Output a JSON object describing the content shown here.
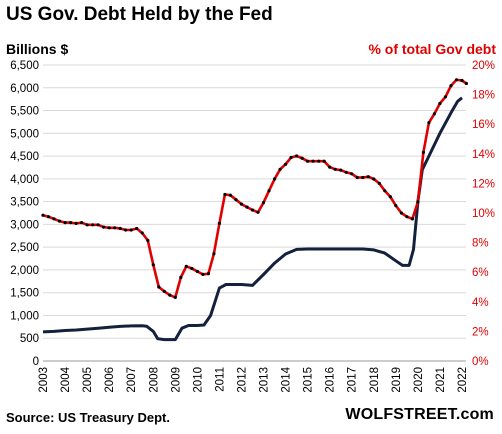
{
  "title": "US Gov. Debt Held by the Fed",
  "source": "Source: US Treasury Dept.",
  "brand": "WOLFSTREET.com",
  "colors": {
    "debt": "#14213d",
    "pct": "#e00000",
    "marker": "#000000",
    "grid": "#d9d9d9"
  },
  "chart_data": {
    "type": "line",
    "title": "US Gov. Debt Held by the Fed",
    "xlabel": "",
    "y1label": "Billions  $",
    "y2label": "% of total Gov debt",
    "xlim": [
      2003,
      2022
    ],
    "ylim": [
      0,
      6500
    ],
    "y2lim": [
      0,
      20
    ],
    "grid": "horizontal",
    "x_ticks": [
      "2003",
      "2004",
      "2005",
      "2006",
      "2007",
      "2008",
      "2009",
      "2010",
      "2011",
      "2012",
      "2013",
      "2014",
      "2015",
      "2016",
      "2017",
      "2018",
      "2019",
      "2020",
      "2021",
      "2022"
    ],
    "y1_ticks": [
      "0",
      "500",
      "1,000",
      "1,500",
      "2,000",
      "2,500",
      "3,000",
      "3,500",
      "4,000",
      "4,500",
      "5,000",
      "5,500",
      "6,000",
      "6,500"
    ],
    "y2_ticks": [
      "0%",
      "2%",
      "4%",
      "6%",
      "8%",
      "10%",
      "12%",
      "14%",
      "16%",
      "18%",
      "20%"
    ],
    "series": [
      {
        "name": "Billions $",
        "axis": "left",
        "points": [
          [
            2003.0,
            640
          ],
          [
            2003.5,
            650
          ],
          [
            2004.0,
            670
          ],
          [
            2004.5,
            680
          ],
          [
            2005.0,
            700
          ],
          [
            2005.5,
            720
          ],
          [
            2006.0,
            740
          ],
          [
            2006.5,
            760
          ],
          [
            2007.0,
            770
          ],
          [
            2007.5,
            775
          ],
          [
            2007.7,
            765
          ],
          [
            2008.0,
            650
          ],
          [
            2008.2,
            490
          ],
          [
            2008.5,
            470
          ],
          [
            2009.0,
            470
          ],
          [
            2009.3,
            720
          ],
          [
            2009.6,
            780
          ],
          [
            2010.0,
            780
          ],
          [
            2010.3,
            790
          ],
          [
            2010.6,
            1000
          ],
          [
            2010.8,
            1300
          ],
          [
            2011.0,
            1600
          ],
          [
            2011.3,
            1680
          ],
          [
            2011.6,
            1680
          ],
          [
            2012.0,
            1680
          ],
          [
            2012.5,
            1660
          ],
          [
            2013.0,
            1900
          ],
          [
            2013.5,
            2150
          ],
          [
            2014.0,
            2350
          ],
          [
            2014.5,
            2450
          ],
          [
            2015.0,
            2460
          ],
          [
            2015.5,
            2460
          ],
          [
            2016.0,
            2460
          ],
          [
            2016.5,
            2460
          ],
          [
            2017.0,
            2460
          ],
          [
            2017.5,
            2460
          ],
          [
            2018.0,
            2440
          ],
          [
            2018.5,
            2370
          ],
          [
            2019.0,
            2200
          ],
          [
            2019.3,
            2100
          ],
          [
            2019.6,
            2100
          ],
          [
            2019.8,
            2450
          ],
          [
            2020.0,
            3500
          ],
          [
            2020.2,
            4200
          ],
          [
            2020.5,
            4500
          ],
          [
            2021.0,
            5000
          ],
          [
            2021.5,
            5450
          ],
          [
            2021.8,
            5700
          ],
          [
            2022.0,
            5780
          ]
        ]
      },
      {
        "name": "% of total Gov debt",
        "axis": "right",
        "points": [
          [
            2003.0,
            9.85
          ],
          [
            2003.25,
            9.75
          ],
          [
            2003.5,
            9.6
          ],
          [
            2003.75,
            9.45
          ],
          [
            2004.0,
            9.35
          ],
          [
            2004.25,
            9.35
          ],
          [
            2004.5,
            9.3
          ],
          [
            2004.75,
            9.35
          ],
          [
            2005.0,
            9.2
          ],
          [
            2005.25,
            9.2
          ],
          [
            2005.5,
            9.2
          ],
          [
            2005.75,
            9.05
          ],
          [
            2006.0,
            9.0
          ],
          [
            2006.25,
            9.0
          ],
          [
            2006.5,
            8.95
          ],
          [
            2006.75,
            8.85
          ],
          [
            2007.0,
            8.85
          ],
          [
            2007.25,
            8.95
          ],
          [
            2007.5,
            8.65
          ],
          [
            2007.75,
            8.15
          ],
          [
            2008.0,
            6.5
          ],
          [
            2008.25,
            5.0
          ],
          [
            2008.5,
            4.7
          ],
          [
            2008.75,
            4.45
          ],
          [
            2009.0,
            4.3
          ],
          [
            2009.25,
            5.65
          ],
          [
            2009.5,
            6.4
          ],
          [
            2009.75,
            6.25
          ],
          [
            2010.0,
            6.05
          ],
          [
            2010.25,
            5.85
          ],
          [
            2010.5,
            5.9
          ],
          [
            2010.75,
            7.25
          ],
          [
            2011.0,
            9.3
          ],
          [
            2011.25,
            11.25
          ],
          [
            2011.5,
            11.2
          ],
          [
            2011.75,
            10.9
          ],
          [
            2012.0,
            10.6
          ],
          [
            2012.25,
            10.4
          ],
          [
            2012.5,
            10.2
          ],
          [
            2012.75,
            10.05
          ],
          [
            2013.0,
            10.7
          ],
          [
            2013.25,
            11.5
          ],
          [
            2013.5,
            12.3
          ],
          [
            2013.75,
            12.95
          ],
          [
            2014.0,
            13.3
          ],
          [
            2014.25,
            13.75
          ],
          [
            2014.5,
            13.85
          ],
          [
            2014.75,
            13.7
          ],
          [
            2015.0,
            13.5
          ],
          [
            2015.25,
            13.5
          ],
          [
            2015.5,
            13.5
          ],
          [
            2015.75,
            13.5
          ],
          [
            2016.0,
            13.1
          ],
          [
            2016.25,
            12.95
          ],
          [
            2016.5,
            12.9
          ],
          [
            2016.75,
            12.75
          ],
          [
            2017.0,
            12.65
          ],
          [
            2017.25,
            12.4
          ],
          [
            2017.5,
            12.4
          ],
          [
            2017.75,
            12.45
          ],
          [
            2018.0,
            12.3
          ],
          [
            2018.25,
            12.0
          ],
          [
            2018.5,
            11.5
          ],
          [
            2018.75,
            11.1
          ],
          [
            2019.0,
            10.5
          ],
          [
            2019.25,
            10.0
          ],
          [
            2019.5,
            9.75
          ],
          [
            2019.75,
            9.6
          ],
          [
            2020.0,
            10.75
          ],
          [
            2020.25,
            14.1
          ],
          [
            2020.5,
            16.1
          ],
          [
            2020.75,
            16.7
          ],
          [
            2021.0,
            17.4
          ],
          [
            2021.25,
            17.85
          ],
          [
            2021.5,
            18.6
          ],
          [
            2021.75,
            19.0
          ],
          [
            2022.0,
            18.95
          ],
          [
            2022.2,
            18.75
          ]
        ]
      }
    ]
  }
}
